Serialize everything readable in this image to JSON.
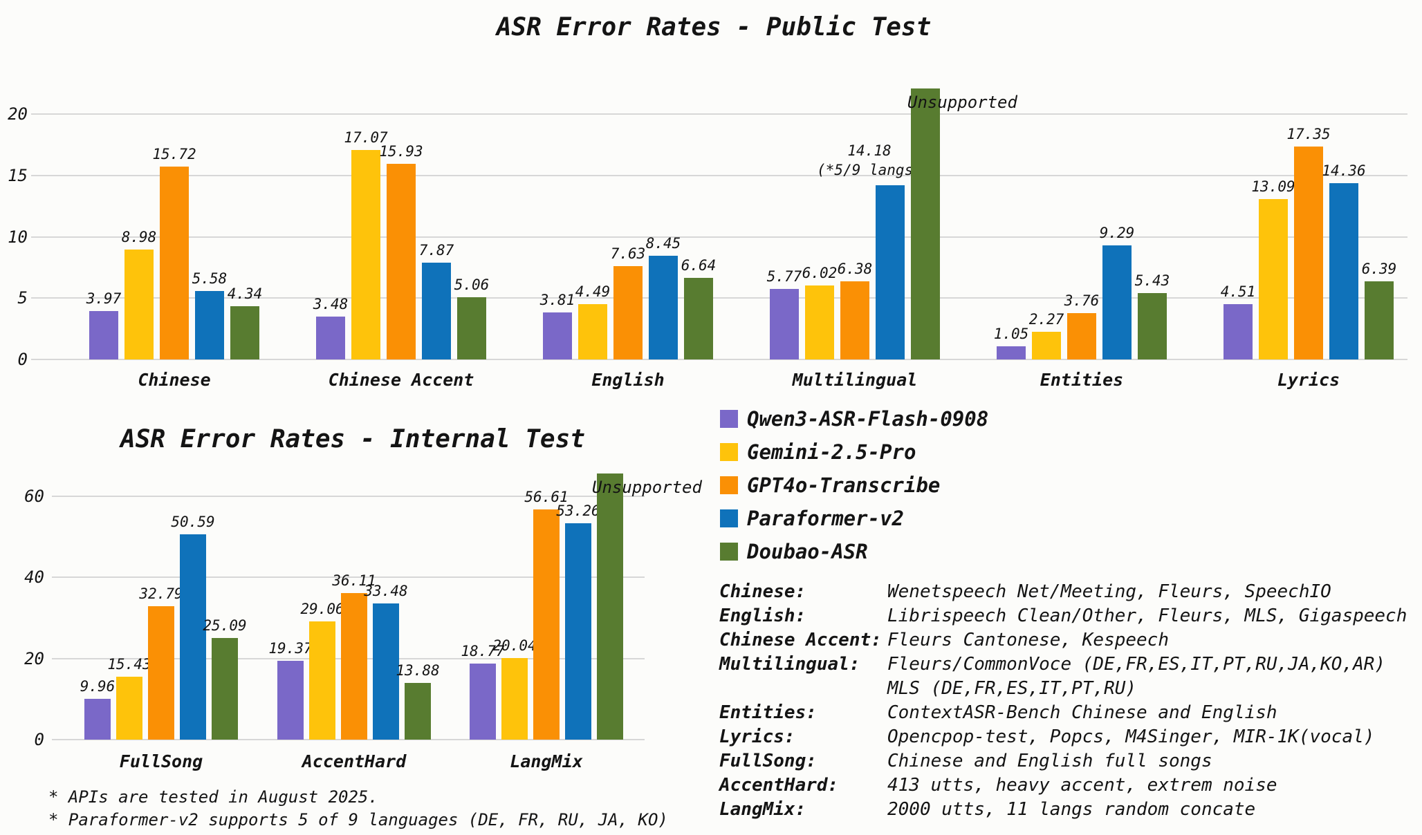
{
  "app": {
    "background": "#FCFCFA",
    "text_color": "#141414",
    "gridline_color": "#D7D7D7"
  },
  "legend": {
    "items": [
      {
        "label": "Qwen3-ASR-Flash-0908",
        "color": "#7A68C8"
      },
      {
        "label": "Gemini-2.5-Pro",
        "color": "#FEC30B"
      },
      {
        "label": "GPT4o-Transcribe",
        "color": "#FA9005"
      },
      {
        "label": "Paraformer-v2",
        "color": "#0F72BA"
      },
      {
        "label": "Doubao-ASR",
        "color": "#587C30"
      }
    ]
  },
  "chart_data": [
    {
      "id": "public_test",
      "type": "bar",
      "title": "ASR Error Rates - Public Test",
      "categories": [
        "Chinese",
        "Chinese Accent",
        "English",
        "Multilingual",
        "Entities",
        "Lyrics"
      ],
      "series": [
        {
          "name": "Qwen3-ASR-Flash-0908",
          "color": "#7A68C8",
          "values": [
            3.97,
            3.48,
            3.81,
            5.77,
            1.05,
            4.51
          ]
        },
        {
          "name": "Gemini-2.5-Pro",
          "color": "#FEC30B",
          "values": [
            8.98,
            17.07,
            4.49,
            6.02,
            2.27,
            13.09
          ]
        },
        {
          "name": "GPT4o-Transcribe",
          "color": "#FA9005",
          "values": [
            15.72,
            15.93,
            7.63,
            6.38,
            3.76,
            17.35
          ]
        },
        {
          "name": "Paraformer-v2",
          "color": "#0F72BA",
          "values": [
            5.58,
            7.87,
            8.45,
            14.18,
            9.29,
            14.36
          ]
        },
        {
          "name": "Doubao-ASR",
          "color": "#587C30",
          "values": [
            4.34,
            5.06,
            6.64,
            null,
            5.43,
            6.39
          ]
        }
      ],
      "y_ticks": [
        0,
        5,
        10,
        15,
        20
      ],
      "ylim": [
        0,
        22.1
      ],
      "grid": true,
      "unsupported_label": "Unsupported",
      "bar_notes": [
        {
          "series": "Paraformer-v2",
          "category": "Multilingual",
          "text": "(*5/9 langs)",
          "dx": -30
        }
      ]
    },
    {
      "id": "internal_test",
      "type": "bar",
      "title": "ASR Error Rates - Internal Test",
      "categories": [
        "FullSong",
        "AccentHard",
        "LangMix"
      ],
      "series": [
        {
          "name": "Qwen3-ASR-Flash-0908",
          "color": "#7A68C8",
          "values": [
            9.96,
            19.37,
            18.77
          ]
        },
        {
          "name": "Gemini-2.5-Pro",
          "color": "#FEC30B",
          "values": [
            15.43,
            29.06,
            20.04
          ]
        },
        {
          "name": "GPT4o-Transcribe",
          "color": "#FA9005",
          "values": [
            32.79,
            36.11,
            56.61
          ]
        },
        {
          "name": "Paraformer-v2",
          "color": "#0F72BA",
          "values": [
            50.59,
            33.48,
            53.26
          ]
        },
        {
          "name": "Doubao-ASR",
          "color": "#587C30",
          "values": [
            25.09,
            13.88,
            null
          ]
        }
      ],
      "y_ticks": [
        0,
        20,
        40,
        60
      ],
      "ylim": [
        0,
        65.5
      ],
      "grid": true,
      "unsupported_label": "Unsupported",
      "bar_notes": []
    }
  ],
  "descriptions": [
    {
      "term": "Chinese:",
      "lines": [
        "Wenetspeech Net/Meeting, Fleurs, SpeechIO"
      ]
    },
    {
      "term": "English:",
      "lines": [
        "Librispeech Clean/Other, Fleurs, MLS, Gigaspeech"
      ]
    },
    {
      "term": "Chinese Accent:",
      "lines": [
        "Fleurs Cantonese, Kespeech"
      ]
    },
    {
      "term": "Multilingual:",
      "lines": [
        "Fleurs/CommonVoce (DE,FR,ES,IT,PT,RU,JA,KO,AR)",
        "MLS (DE,FR,ES,IT,PT,RU)"
      ]
    },
    {
      "term": "Entities:",
      "lines": [
        "ContextASR-Bench Chinese and English"
      ]
    },
    {
      "term": "Lyrics:",
      "lines": [
        "Opencpop-test, Popcs, M4Singer, MIR-1K(vocal)"
      ]
    },
    {
      "term": "FullSong:",
      "lines": [
        "Chinese and English full songs"
      ]
    },
    {
      "term": "AccentHard:",
      "lines": [
        "413 utts, heavy accent, extrem noise"
      ]
    },
    {
      "term": "LangMix:",
      "lines": [
        "2000 utts, 11 langs random concate"
      ]
    }
  ],
  "footnotes": [
    "* APIs are tested in August 2025.",
    "* Paraformer-v2 supports 5 of 9 languages (DE, FR, RU, JA, KO)"
  ]
}
